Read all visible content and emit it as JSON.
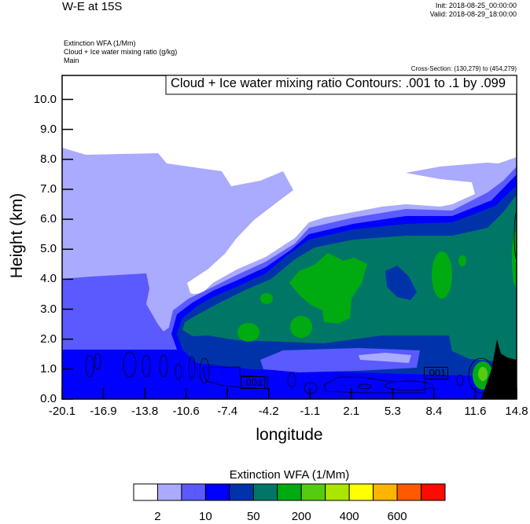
{
  "header": {
    "title": "W-E at 15S",
    "init": "Init: 2018-08-25_00:00:00",
    "valid": "Valid: 2018-08-29_18:00:00",
    "field_lines": [
      "Extinction WFA   (1/Mm)",
      "Cloud + Ice water mixing ratio   (g/kg)",
      "Main"
    ],
    "cross_section": "Cross-Section: (130,279) to (454,279)"
  },
  "chart_data": {
    "type": "heatmap",
    "subtype": "filled-contour cross-section with line contours",
    "xlabel": "longitude",
    "ylabel": "Height (km)",
    "xlim": [
      -20.1,
      14.8
    ],
    "ylim": [
      0,
      10.8
    ],
    "xticks": [
      "-20.1",
      "-16.9",
      "-13.8",
      "-10.6",
      "-7.4",
      "-4.2",
      "-1.1",
      "2.1",
      "5.3",
      "8.4",
      "11.6",
      "14.8"
    ],
    "yticks": [
      "0.0",
      "1.0",
      "2.0",
      "3.0",
      "4.0",
      "5.0",
      "6.0",
      "7.0",
      "8.0",
      "9.0",
      "10.0"
    ],
    "contour_legend": "Cloud + Ice water mixing ratio Contours: .001 to .1 by .099",
    "contour_labels": [
      ".001",
      ".001"
    ],
    "colorbar": {
      "title": "Extinction WFA  (1/Mm)",
      "colors": [
        "#ffffff",
        "#aaaaff",
        "#5a5aff",
        "#0000ff",
        "#0033aa",
        "#007766",
        "#00aa11",
        "#55cc11",
        "#aae600",
        "#ffff00",
        "#ffb400",
        "#ff5a00",
        "#ff0a00"
      ],
      "labels": [
        "2",
        "10",
        "50",
        "200",
        "400",
        "600"
      ]
    }
  }
}
